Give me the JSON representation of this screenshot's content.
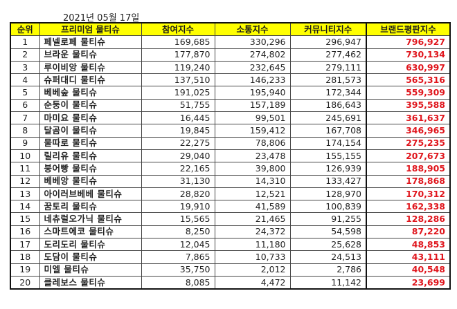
{
  "date_label": "2021년 05월 17일",
  "table": {
    "headers": [
      "순위",
      "프리미엄 물티슈",
      "참여지수",
      "소통지수",
      "커뮤니티지수",
      "브랜드평판지수"
    ],
    "rows": [
      {
        "rank": "1",
        "name": "페넬로페 물티슈",
        "participation": "169,685",
        "communication": "330,296",
        "community": "296,947",
        "reputation": "796,927"
      },
      {
        "rank": "2",
        "name": "브라운 물티슈",
        "participation": "177,870",
        "communication": "274,802",
        "community": "277,462",
        "reputation": "730,134"
      },
      {
        "rank": "3",
        "name": "루이비앙 물티슈",
        "participation": "119,240",
        "communication": "232,645",
        "community": "279,111",
        "reputation": "630,997"
      },
      {
        "rank": "4",
        "name": "슈퍼대디 물티슈",
        "participation": "137,510",
        "communication": "146,233",
        "community": "281,573",
        "reputation": "565,316"
      },
      {
        "rank": "5",
        "name": "베베숲 물티슈",
        "participation": "191,025",
        "communication": "195,940",
        "community": "172,344",
        "reputation": "559,309"
      },
      {
        "rank": "6",
        "name": "순둥이 물티슈",
        "participation": "51,755",
        "communication": "157,189",
        "community": "186,643",
        "reputation": "395,588"
      },
      {
        "rank": "7",
        "name": "마미요 물티슈",
        "participation": "16,445",
        "communication": "99,501",
        "community": "245,691",
        "reputation": "361,637"
      },
      {
        "rank": "8",
        "name": "달곰이 물티슈",
        "participation": "19,845",
        "communication": "159,412",
        "community": "167,708",
        "reputation": "346,965"
      },
      {
        "rank": "9",
        "name": "물따로 물티슈",
        "participation": "22,275",
        "communication": "78,806",
        "community": "174,154",
        "reputation": "275,235"
      },
      {
        "rank": "10",
        "name": "릴리유 물티슈",
        "participation": "29,040",
        "communication": "23,478",
        "community": "155,155",
        "reputation": "207,673"
      },
      {
        "rank": "11",
        "name": "붕어빵 물티슈",
        "participation": "22,165",
        "communication": "39,800",
        "community": "126,939",
        "reputation": "188,905"
      },
      {
        "rank": "12",
        "name": "베베앙 물티슈",
        "participation": "31,130",
        "communication": "14,310",
        "community": "133,427",
        "reputation": "178,868"
      },
      {
        "rank": "13",
        "name": "아이러브베베 물티슈",
        "participation": "28,820",
        "communication": "12,521",
        "community": "128,970",
        "reputation": "170,312"
      },
      {
        "rank": "14",
        "name": "꿈토리 물티슈",
        "participation": "19,910",
        "communication": "41,589",
        "community": "100,839",
        "reputation": "162,338"
      },
      {
        "rank": "15",
        "name": "네츄럴오가닉 물티슈",
        "participation": "15,565",
        "communication": "21,465",
        "community": "91,255",
        "reputation": "128,286"
      },
      {
        "rank": "16",
        "name": "스마트에코 물티슈",
        "participation": "8,250",
        "communication": "24,372",
        "community": "54,598",
        "reputation": "87,220"
      },
      {
        "rank": "17",
        "name": "도리도리 물티슈",
        "participation": "12,045",
        "communication": "11,180",
        "community": "25,628",
        "reputation": "48,853"
      },
      {
        "rank": "18",
        "name": "도담이 물티슈",
        "participation": "7,865",
        "communication": "10,733",
        "community": "24,513",
        "reputation": "43,111"
      },
      {
        "rank": "19",
        "name": "미엘 물티슈",
        "participation": "35,750",
        "communication": "2,012",
        "community": "2,786",
        "reputation": "40,548"
      },
      {
        "rank": "20",
        "name": "클레보스 물티슈",
        "participation": "8,085",
        "communication": "4,472",
        "community": "11,142",
        "reputation": "23,699"
      }
    ]
  },
  "colors": {
    "header_bg": "#ffff00",
    "reputation_text": "#e0161d",
    "border": "#111111"
  }
}
